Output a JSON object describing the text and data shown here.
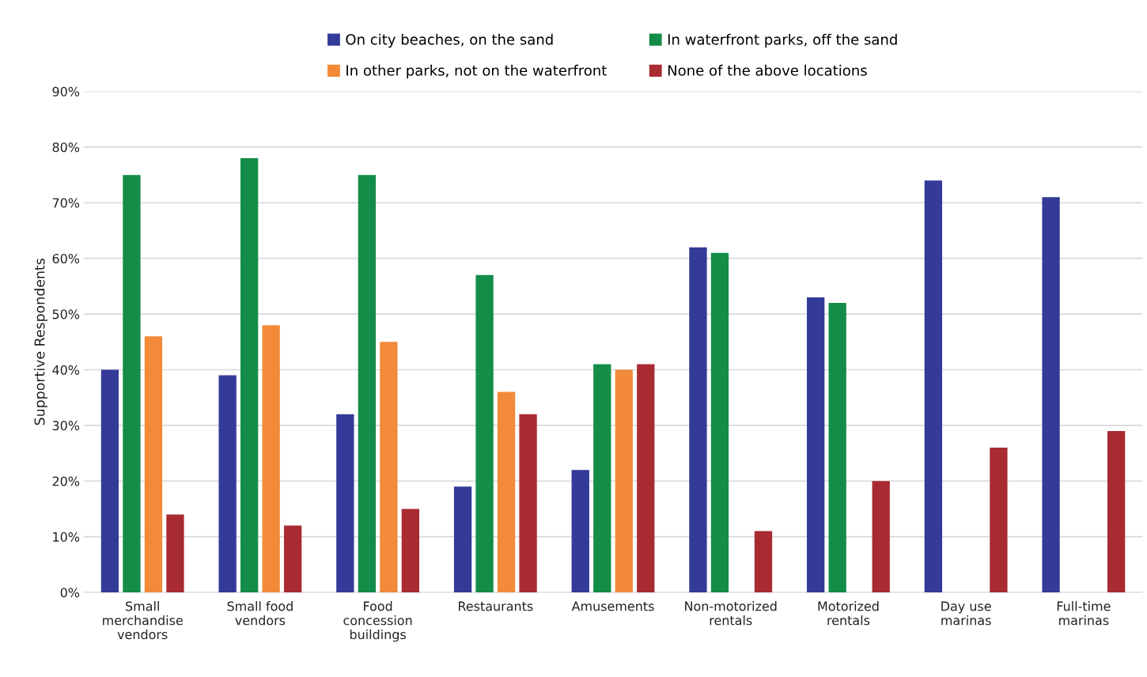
{
  "chart_data": {
    "type": "bar",
    "ylabel": "Supportive Respondents",
    "categories": [
      "Small merchandise vendors",
      "Small food vendors",
      "Food concession buildings",
      "Restaurants",
      "Amusements",
      "Non-motorized rentals",
      "Motorized rentals",
      "Day use marinas",
      "Full-time marinas"
    ],
    "series": [
      {
        "name": "On city beaches, on the sand",
        "color": "#343a98",
        "values": [
          40,
          39,
          32,
          19,
          22,
          62,
          53,
          74,
          71
        ]
      },
      {
        "name": "In waterfront parks, off the sand",
        "color": "#138d48",
        "values": [
          75,
          78,
          75,
          57,
          41,
          61,
          52,
          null,
          null
        ]
      },
      {
        "name": "In other parks, not on the waterfront",
        "color": "#f28a3a",
        "values": [
          46,
          48,
          45,
          36,
          40,
          null,
          null,
          null,
          null
        ]
      },
      {
        "name": "None of the above locations",
        "color": "#a92b32",
        "values": [
          14,
          12,
          15,
          32,
          41,
          11,
          20,
          26,
          29
        ]
      }
    ],
    "ylim": [
      0,
      90
    ],
    "yticks": [
      {
        "value": 0,
        "label": "0%"
      },
      {
        "value": 10,
        "label": "10%"
      },
      {
        "value": 20,
        "label": "20%"
      },
      {
        "value": 30,
        "label": "30%"
      },
      {
        "value": 40,
        "label": "40%"
      },
      {
        "value": 50,
        "label": "50%"
      },
      {
        "value": 60,
        "label": "60%"
      },
      {
        "value": 70,
        "label": "70%"
      },
      {
        "value": 80,
        "label": "80%"
      },
      {
        "value": 90,
        "label": "90%"
      }
    ],
    "grid": "y",
    "legend": "top"
  }
}
